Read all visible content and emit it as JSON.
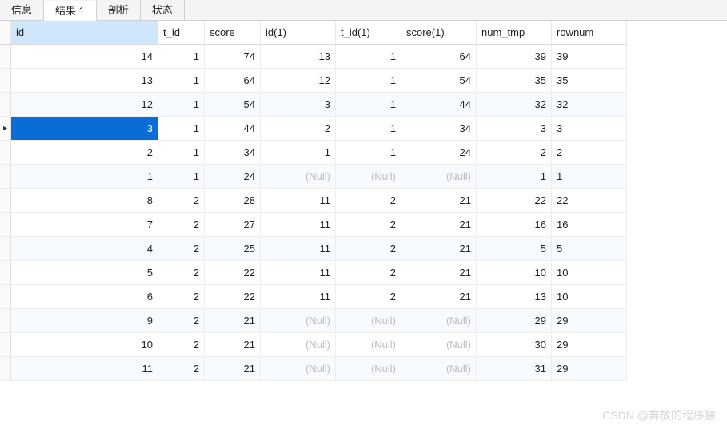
{
  "tabs": {
    "info": "信息",
    "results": "结果 1",
    "profile": "剖析",
    "status": "状态",
    "active": "results"
  },
  "columns": [
    {
      "key": "id",
      "label": "id",
      "align": "right",
      "selected": true
    },
    {
      "key": "t_id",
      "label": "t_id",
      "align": "right"
    },
    {
      "key": "score",
      "label": "score",
      "align": "right"
    },
    {
      "key": "id1",
      "label": "id(1)",
      "align": "right"
    },
    {
      "key": "t_id1",
      "label": "t_id(1)",
      "align": "right"
    },
    {
      "key": "score1",
      "label": "score(1)",
      "align": "right"
    },
    {
      "key": "num_tmp",
      "label": "num_tmp",
      "align": "right"
    },
    {
      "key": "rownum",
      "label": "rownum",
      "align": "left"
    }
  ],
  "null_text": "(Null)",
  "selected_row_index": 3,
  "current_marker": "▸",
  "rows": [
    {
      "id": "14",
      "t_id": "1",
      "score": "74",
      "id1": "13",
      "t_id1": "1",
      "score1": "64",
      "num_tmp": "39",
      "rownum": "39"
    },
    {
      "id": "13",
      "t_id": "1",
      "score": "64",
      "id1": "12",
      "t_id1": "1",
      "score1": "54",
      "num_tmp": "35",
      "rownum": "35"
    },
    {
      "id": "12",
      "t_id": "1",
      "score": "54",
      "id1": "3",
      "t_id1": "1",
      "score1": "44",
      "num_tmp": "32",
      "rownum": "32"
    },
    {
      "id": "3",
      "t_id": "1",
      "score": "44",
      "id1": "2",
      "t_id1": "1",
      "score1": "34",
      "num_tmp": "3",
      "rownum": "3"
    },
    {
      "id": "2",
      "t_id": "1",
      "score": "34",
      "id1": "1",
      "t_id1": "1",
      "score1": "24",
      "num_tmp": "2",
      "rownum": "2"
    },
    {
      "id": "1",
      "t_id": "1",
      "score": "24",
      "id1": null,
      "t_id1": null,
      "score1": null,
      "num_tmp": "1",
      "rownum": "1"
    },
    {
      "id": "8",
      "t_id": "2",
      "score": "28",
      "id1": "11",
      "t_id1": "2",
      "score1": "21",
      "num_tmp": "22",
      "rownum": "22"
    },
    {
      "id": "7",
      "t_id": "2",
      "score": "27",
      "id1": "11",
      "t_id1": "2",
      "score1": "21",
      "num_tmp": "16",
      "rownum": "16"
    },
    {
      "id": "4",
      "t_id": "2",
      "score": "25",
      "id1": "11",
      "t_id1": "2",
      "score1": "21",
      "num_tmp": "5",
      "rownum": "5"
    },
    {
      "id": "5",
      "t_id": "2",
      "score": "22",
      "id1": "11",
      "t_id1": "2",
      "score1": "21",
      "num_tmp": "10",
      "rownum": "10"
    },
    {
      "id": "6",
      "t_id": "2",
      "score": "22",
      "id1": "11",
      "t_id1": "2",
      "score1": "21",
      "num_tmp": "13",
      "rownum": "10"
    },
    {
      "id": "9",
      "t_id": "2",
      "score": "21",
      "id1": null,
      "t_id1": null,
      "score1": null,
      "num_tmp": "29",
      "rownum": "29"
    },
    {
      "id": "10",
      "t_id": "2",
      "score": "21",
      "id1": null,
      "t_id1": null,
      "score1": null,
      "num_tmp": "30",
      "rownum": "29"
    },
    {
      "id": "11",
      "t_id": "2",
      "score": "21",
      "id1": null,
      "t_id1": null,
      "score1": null,
      "num_tmp": "31",
      "rownum": "29"
    }
  ],
  "alt_row_indices": [
    2,
    5,
    8,
    11,
    13
  ],
  "watermark": "CSDN @奔放的程序猿",
  "colors": {
    "selection_bg": "#0a6cd6",
    "selection_fg": "#ffffff",
    "header_selected_bg": "#cfe6fb",
    "alt_row_bg": "#f7fbff",
    "null_fg": "#bdbdbd",
    "border": "#eeeeee"
  }
}
